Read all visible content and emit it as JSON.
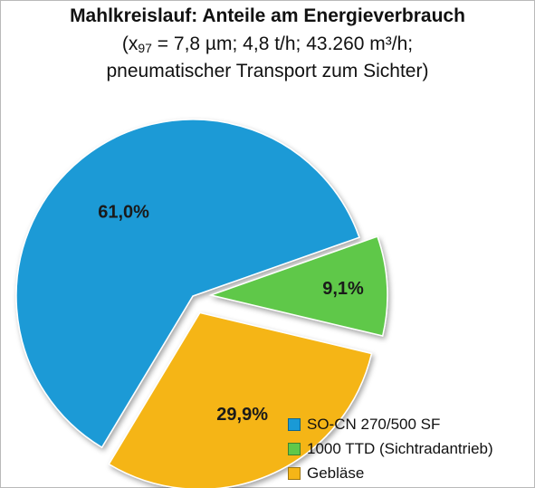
{
  "chart_data": {
    "type": "pie",
    "title": "Mahlkreislauf: Anteile am Energieverbrauch",
    "subtitle_line1_prefix": "(x",
    "subtitle_line1_subscript": "97",
    "subtitle_line1_suffix": " = 7,8 µm; 4,8 t/h; 43.260 m³/h;",
    "subtitle_line2": "pneumatischer Transport zum Sichter)",
    "slices": [
      {
        "name": "SO-CN 270/500 SF",
        "value": 61.0,
        "label": "61,0%",
        "color": "#1a9ad6",
        "exploded": false
      },
      {
        "name": "1000 TTD (Sichtradantrieb)",
        "value": 9.1,
        "label": "9,1%",
        "color": "#5fc84a",
        "exploded": true
      },
      {
        "name": "Gebläse",
        "value": 29.9,
        "label": "29,9%",
        "color": "#f5b517",
        "exploded": true
      }
    ],
    "legend_position": "bottom-right"
  }
}
